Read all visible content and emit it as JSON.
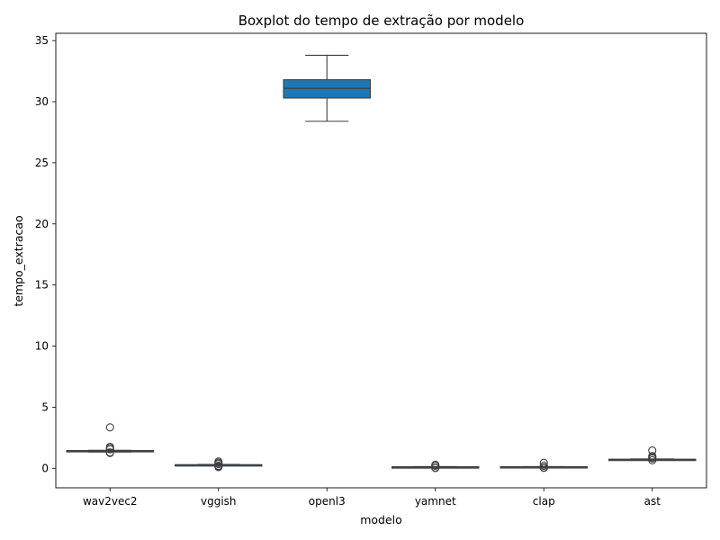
{
  "chart_data": {
    "type": "boxplot",
    "title": "Boxplot do tempo de extração por modelo",
    "xlabel": "modelo",
    "ylabel": "tempo_extracao",
    "ylim": [
      -1.6,
      35.6
    ],
    "yticks": [
      0,
      5,
      10,
      15,
      20,
      25,
      30,
      35
    ],
    "grid": false,
    "box_color": "#1f77b4",
    "line_color": "#3f3f3f",
    "categories": [
      "wav2vec2",
      "vggish",
      "openl3",
      "yamnet",
      "clap",
      "ast"
    ],
    "boxes": [
      {
        "name": "wav2vec2",
        "whisker_low": 1.33,
        "q1": 1.38,
        "median": 1.41,
        "q3": 1.45,
        "whisker_high": 1.47,
        "outliers": [
          1.25,
          1.3,
          1.55,
          1.65,
          1.75,
          3.35
        ]
      },
      {
        "name": "vggish",
        "whisker_low": 0.26,
        "q1": 0.27,
        "median": 0.28,
        "q3": 0.29,
        "whisker_high": 0.31,
        "outliers": [
          0.1,
          0.15,
          0.2,
          0.35,
          0.45,
          0.55
        ]
      },
      {
        "name": "openl3",
        "whisker_low": 28.4,
        "q1": 30.3,
        "median": 31.1,
        "q3": 31.8,
        "whisker_high": 33.8,
        "outliers": []
      },
      {
        "name": "yamnet",
        "whisker_low": 0.08,
        "q1": 0.1,
        "median": 0.11,
        "q3": 0.12,
        "whisker_high": 0.14,
        "outliers": [
          0.02,
          0.05,
          0.2,
          0.28
        ]
      },
      {
        "name": "clap",
        "whisker_low": 0.1,
        "q1": 0.11,
        "median": 0.12,
        "q3": 0.13,
        "whisker_high": 0.14,
        "outliers": [
          0.03,
          0.06,
          0.2,
          0.45
        ]
      },
      {
        "name": "ast",
        "whisker_low": 0.68,
        "q1": 0.7,
        "median": 0.72,
        "q3": 0.74,
        "whisker_high": 0.76,
        "outliers": [
          0.65,
          0.8,
          0.9,
          1.0,
          1.45
        ]
      }
    ]
  }
}
